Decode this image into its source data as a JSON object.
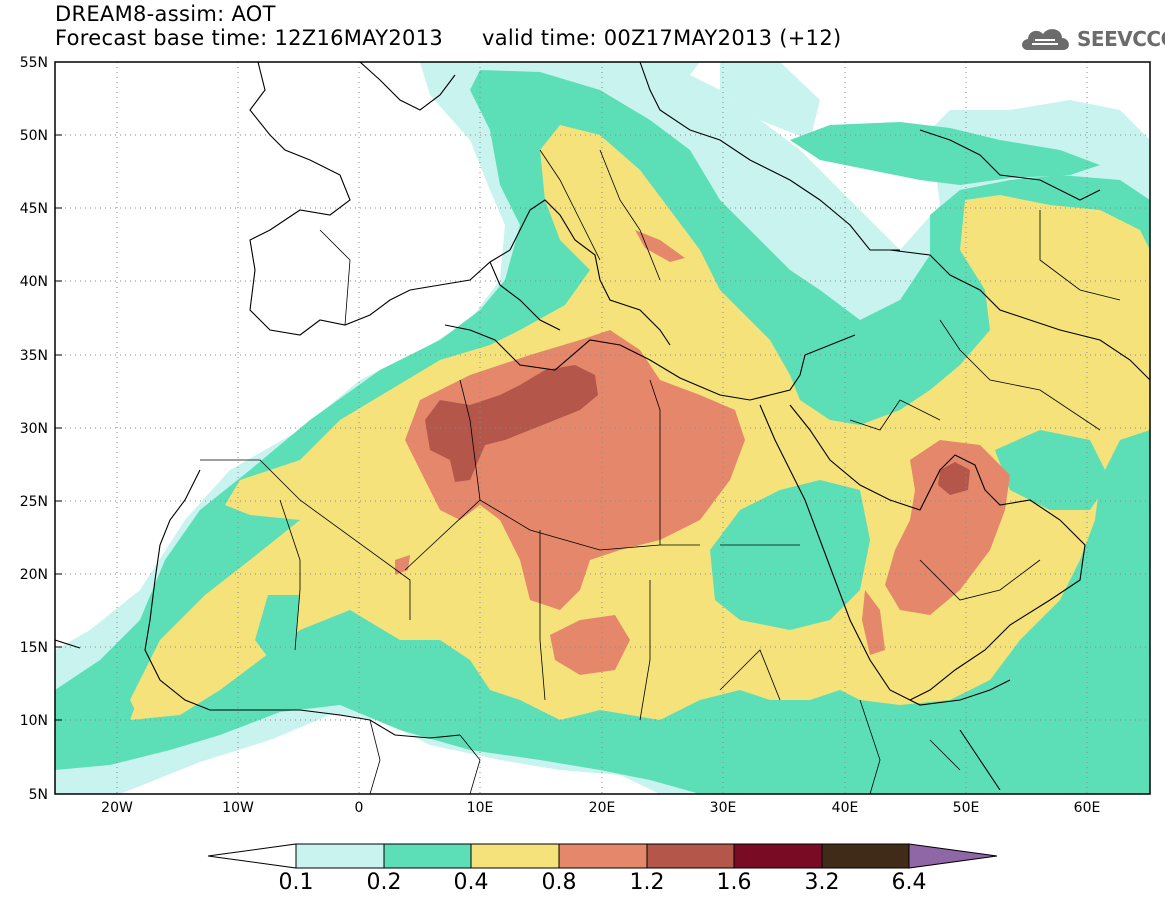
{
  "header": {
    "title": "DREAM8-assim: AOT",
    "forecast_base": "Forecast base time: 12Z16MAY2013",
    "valid_time": "valid time: 00Z17MAY2013 (+12)"
  },
  "logo": {
    "icon": "cloud-icon",
    "text": "SEEVCCC"
  },
  "map": {
    "lat_labels": [
      "55N",
      "50N",
      "45N",
      "40N",
      "35N",
      "30N",
      "25N",
      "20N",
      "15N",
      "10N",
      "5N"
    ],
    "lon_labels": [
      "20W",
      "10W",
      "0",
      "10E",
      "20E",
      "30E",
      "40E",
      "50E",
      "60E"
    ],
    "lon_range": [
      -25,
      65
    ],
    "lat_range": [
      5,
      55
    ],
    "grid": "dotted"
  },
  "legend": {
    "thresholds": [
      "0.1",
      "0.2",
      "0.4",
      "0.8",
      "1.2",
      "1.6",
      "3.2",
      "6.4"
    ],
    "colors": [
      "#c8f3ee",
      "#5cdfb6",
      "#f5e27a",
      "#e5876a",
      "#b4574a",
      "#7a0b24",
      "#3f2b17",
      "#8f66a6"
    ]
  }
}
